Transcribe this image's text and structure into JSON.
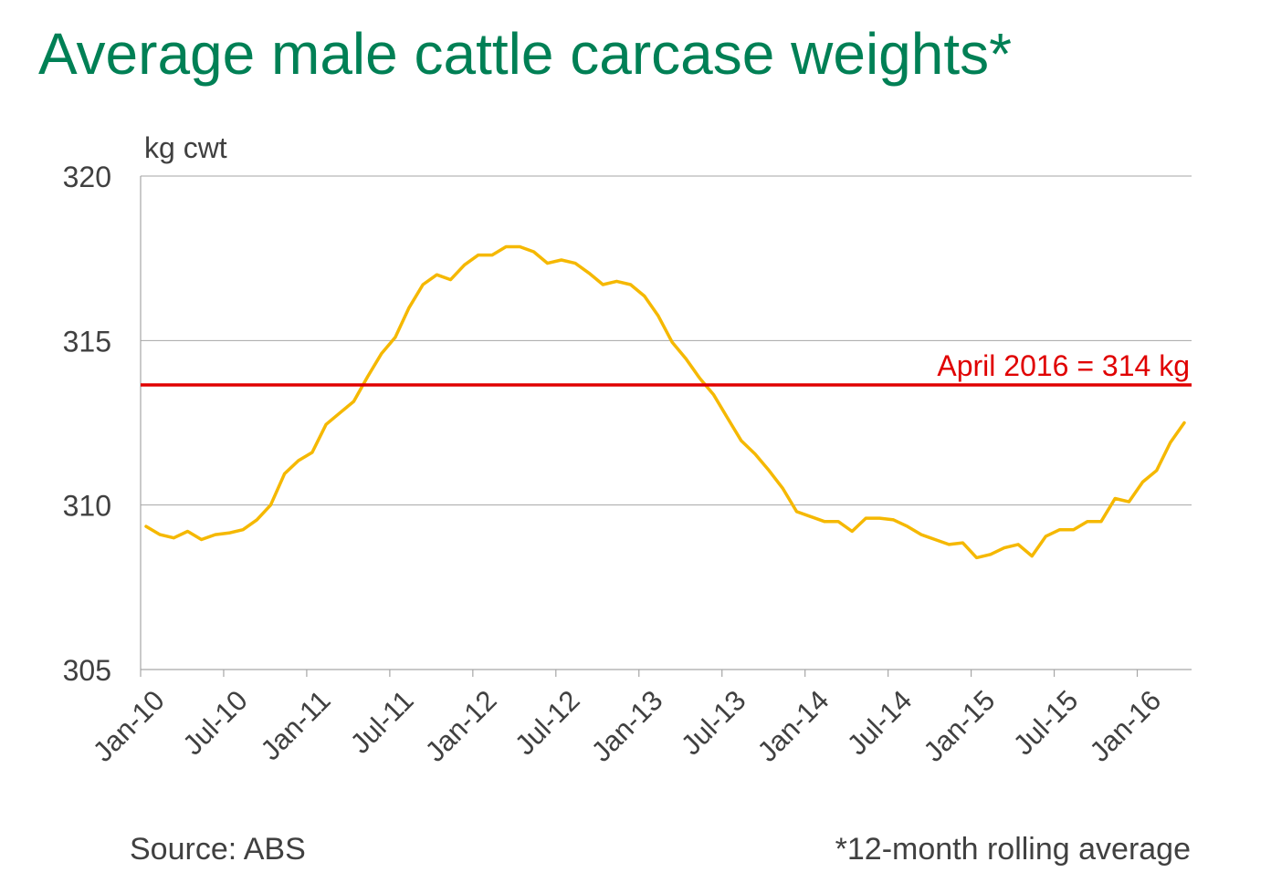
{
  "chart_data": {
    "type": "line",
    "title": "Average male cattle carcase weights*",
    "ylabel": "kg cwt",
    "xlabel": "",
    "ylim": [
      305,
      320
    ],
    "yticks": [
      "305",
      "310",
      "315",
      "320"
    ],
    "xticks": [
      "Jan-10",
      "Jul-10",
      "Jan-11",
      "Jul-11",
      "Jan-12",
      "Jul-12",
      "Jan-13",
      "Jul-13",
      "Jan-14",
      "Jul-14",
      "Jan-15",
      "Jul-15",
      "Jan-16"
    ],
    "grid": true,
    "series": [
      {
        "name": "",
        "color": "#f5b800",
        "x_start": "Jan-10",
        "x_step": "1 month",
        "values": [
          309.35,
          309.1,
          309.0,
          309.2,
          308.95,
          309.1,
          309.15,
          309.25,
          309.55,
          310.0,
          310.95,
          311.35,
          311.6,
          312.45,
          312.8,
          313.15,
          313.9,
          314.6,
          315.1,
          316.0,
          316.7,
          317.0,
          316.85,
          317.3,
          317.6,
          317.6,
          317.85,
          317.85,
          317.7,
          317.35,
          317.45,
          317.35,
          317.05,
          316.7,
          316.8,
          316.7,
          316.35,
          315.75,
          314.95,
          314.45,
          313.85,
          313.35,
          312.65,
          311.95,
          311.55,
          311.05,
          310.5,
          309.8,
          309.65,
          309.5,
          309.5,
          309.2,
          309.6,
          309.6,
          309.55,
          309.35,
          309.1,
          308.95,
          308.8,
          308.85,
          308.4,
          308.5,
          308.7,
          308.8,
          308.45,
          309.05,
          309.25,
          309.25,
          309.5,
          309.5,
          310.2,
          310.1,
          310.7,
          311.05,
          311.9,
          312.5
        ]
      }
    ],
    "reference_line": {
      "value": 313.65,
      "label": "April 2016 = 314 kg",
      "color": "#e00000"
    }
  },
  "footer": {
    "source": "Source: ABS",
    "note": "*12-month rolling average"
  }
}
